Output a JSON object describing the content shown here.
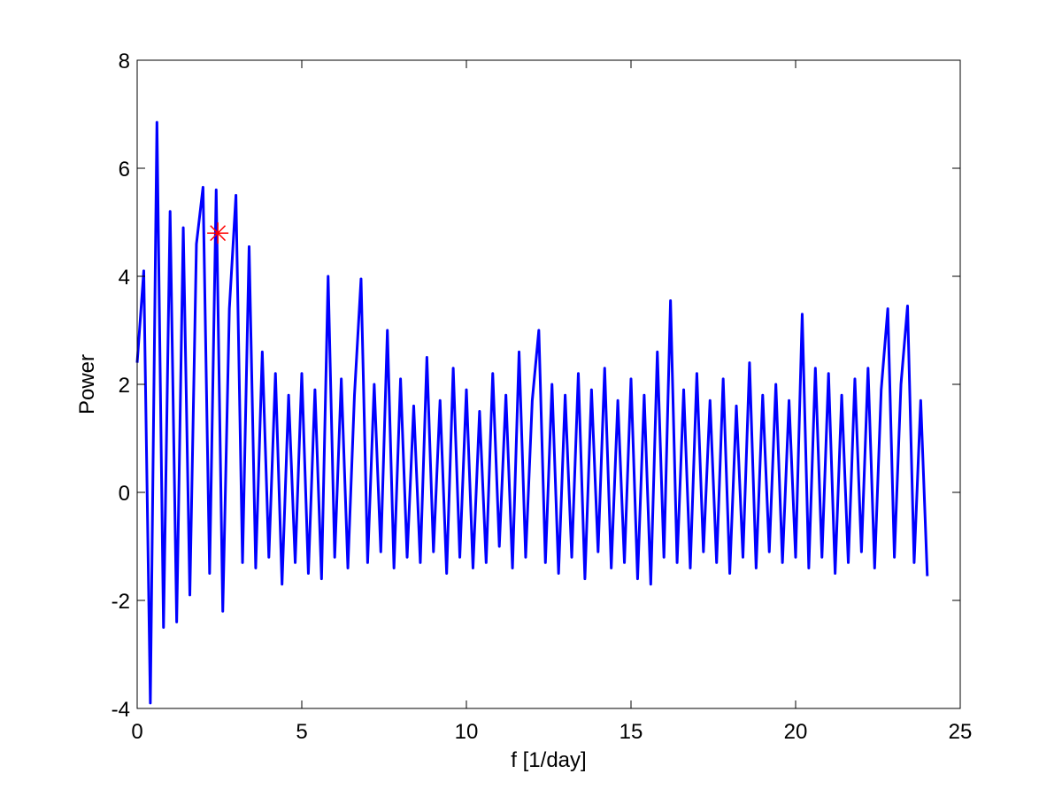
{
  "chart_data": {
    "type": "line",
    "xlabel": "f [1/day]",
    "ylabel": "Power",
    "xlim": [
      0,
      25
    ],
    "ylim": [
      -4,
      8
    ],
    "xticks": [
      0,
      5,
      10,
      15,
      20,
      25
    ],
    "yticks": [
      -4,
      -2,
      0,
      2,
      4,
      6,
      8
    ],
    "grid": false,
    "series": [
      {
        "color": "#0000ff",
        "x": [
          0,
          0.2,
          0.4,
          0.6,
          0.8,
          1,
          1.2,
          1.4,
          1.6,
          1.8,
          2,
          2.2,
          2.4,
          2.6,
          2.8,
          3,
          3.2,
          3.4,
          3.6,
          3.8,
          4,
          4.2,
          4.4,
          4.6,
          4.8,
          5,
          5.2,
          5.4,
          5.6,
          5.8,
          6,
          6.2,
          6.4,
          6.6,
          6.8,
          7,
          7.2,
          7.4,
          7.6,
          7.8,
          8,
          8.2,
          8.4,
          8.6,
          8.8,
          9,
          9.2,
          9.4,
          9.6,
          9.8,
          10,
          10.2,
          10.4,
          10.6,
          10.8,
          11,
          11.2,
          11.4,
          11.6,
          11.8,
          12,
          12.2,
          12.4,
          12.6,
          12.8,
          13,
          13.2,
          13.4,
          13.6,
          13.8,
          14,
          14.2,
          14.4,
          14.6,
          14.8,
          15,
          15.2,
          15.4,
          15.6,
          15.8,
          16,
          16.2,
          16.4,
          16.6,
          16.8,
          17,
          17.2,
          17.4,
          17.6,
          17.8,
          18,
          18.2,
          18.4,
          18.6,
          18.8,
          19,
          19.2,
          19.4,
          19.6,
          19.8,
          20,
          20.2,
          20.4,
          20.6,
          20.8,
          21,
          21.2,
          21.4,
          21.6,
          21.8,
          22,
          22.2,
          22.4,
          22.6,
          22.8,
          23,
          23.2,
          23.4,
          23.6,
          23.8,
          24
        ],
        "values": [
          2.4,
          4.1,
          -3.9,
          6.85,
          -2.5,
          5.2,
          -2.4,
          4.9,
          -1.9,
          4.6,
          5.65,
          -1.5,
          5.6,
          -2.2,
          3.4,
          5.5,
          -1.3,
          4.55,
          -1.4,
          2.6,
          -1.2,
          2.2,
          -1.7,
          1.8,
          -1.3,
          2.2,
          -1.5,
          1.9,
          -1.6,
          4.0,
          -1.2,
          2.1,
          -1.4,
          1.8,
          3.95,
          -1.3,
          2.0,
          -1.1,
          3.0,
          -1.4,
          2.1,
          -1.2,
          1.6,
          -1.3,
          2.5,
          -1.1,
          1.7,
          -1.5,
          2.3,
          -1.2,
          1.9,
          -1.4,
          1.5,
          -1.3,
          2.2,
          -1.0,
          1.8,
          -1.4,
          2.6,
          -1.2,
          1.7,
          3.0,
          -1.3,
          2.0,
          -1.5,
          1.8,
          -1.2,
          2.2,
          -1.6,
          1.9,
          -1.1,
          2.3,
          -1.4,
          1.7,
          -1.3,
          2.1,
          -1.6,
          1.8,
          -1.7,
          2.6,
          -1.2,
          3.55,
          -1.3,
          1.9,
          -1.4,
          2.2,
          -1.1,
          1.7,
          -1.3,
          2.1,
          -1.5,
          1.6,
          -1.2,
          2.4,
          -1.4,
          1.8,
          -1.1,
          2.0,
          -1.3,
          1.7,
          -1.2,
          3.3,
          -1.4,
          2.3,
          -1.2,
          2.2,
          -1.5,
          1.8,
          -1.3,
          2.1,
          -1.1,
          2.3,
          -1.4,
          1.9,
          3.4,
          -1.2,
          2.0,
          3.45,
          -1.3,
          1.7,
          -1.55
        ]
      }
    ],
    "marker": {
      "x": 2.45,
      "y": 4.8,
      "color": "#ff0000"
    }
  }
}
